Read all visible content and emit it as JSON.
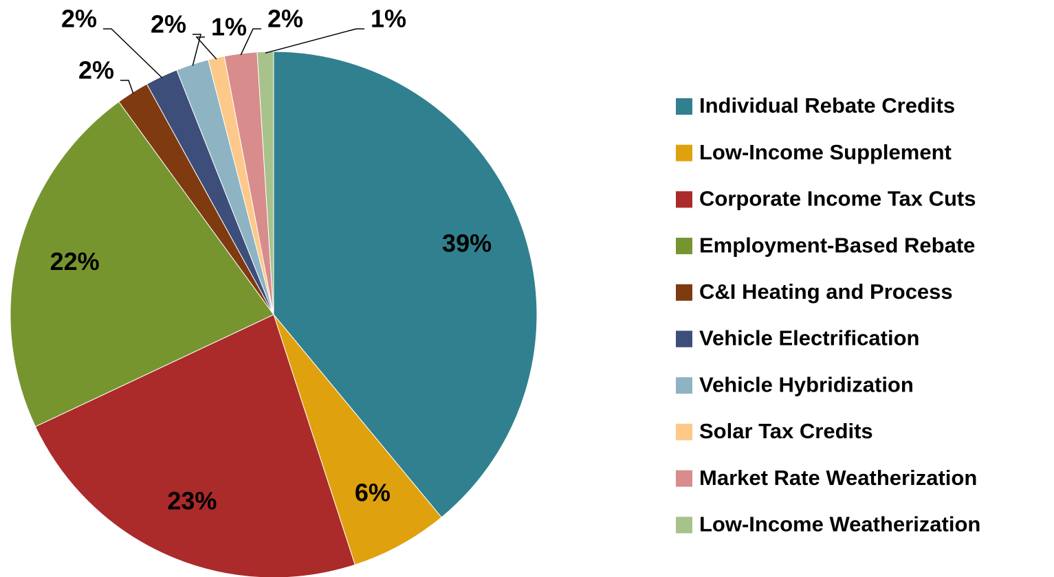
{
  "chart_data": {
    "type": "pie",
    "categories": [
      "Individual Rebate Credits",
      "Low-Income Supplement",
      "Corporate Income Tax Cuts",
      "Employment-Based Rebate",
      "C&I Heating and Process",
      "Vehicle Electrification",
      "Vehicle Hybridization",
      "Solar Tax Credits",
      "Market Rate Weatherization",
      "Low-Income Weatherization"
    ],
    "values": [
      39,
      6,
      23,
      22,
      2,
      2,
      2,
      1,
      2,
      1
    ],
    "value_labels": [
      "39%",
      "6%",
      "23%",
      "22%",
      "2%",
      "2%",
      "2%",
      "1%",
      "2%",
      "1%"
    ],
    "colors": [
      "#31808f",
      "#e0a10e",
      "#ab2a2a",
      "#77952f",
      "#7f3a0f",
      "#3d4e7a",
      "#8eb4c3",
      "#fdc98a",
      "#d88c8c",
      "#a8c28c"
    ],
    "legend": "right"
  }
}
